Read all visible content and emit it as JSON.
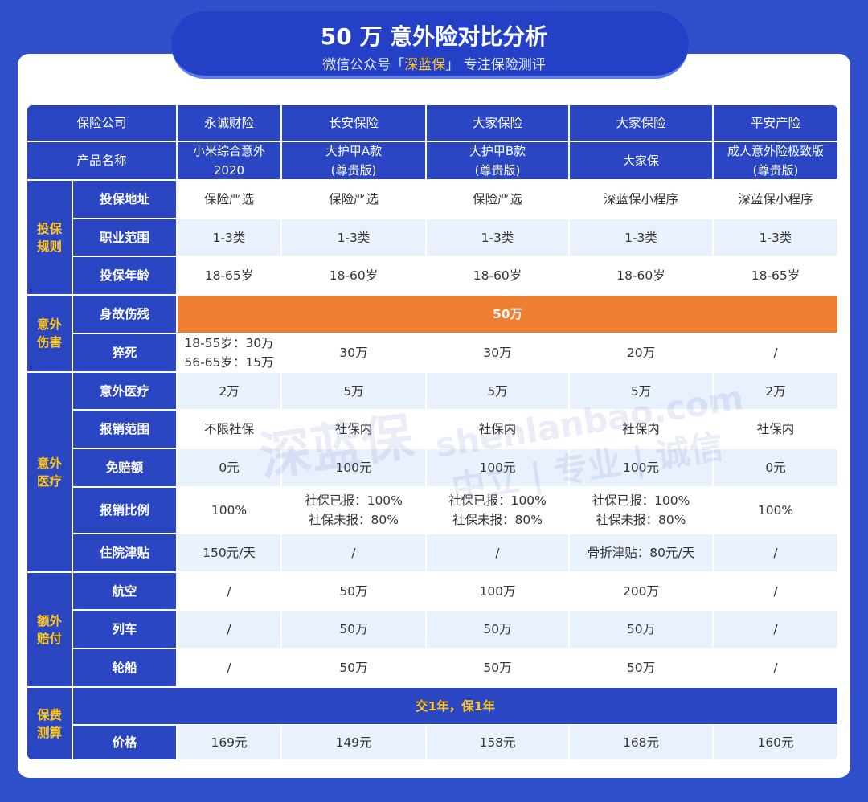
{
  "header": {
    "title": "50 万 意外险对比分析",
    "subtitle": [
      "微信公众号「",
      "深蓝保",
      "」 专注保险测评"
    ]
  },
  "watermark": {
    "logo": "深蓝保",
    "site": "shenlanbao.com",
    "slogan": "中立 | 专业 | 诚信"
  },
  "table": {
    "companies": {
      "label": "保险公司",
      "values": [
        "永诚财险",
        "长安保险",
        "大家保险",
        "大家保险",
        "平安产险"
      ]
    },
    "products": {
      "label": "产品名称",
      "values": [
        "小米综合意外\n2020",
        "大护甲A款\n(尊贵版)",
        "大护甲B款\n(尊贵版)",
        "大家保",
        "成人意外险极致版\n(尊贵版)"
      ]
    },
    "groups": [
      {
        "name": "投保\n规则",
        "rows": [
          {
            "label": "投保地址",
            "cells": [
              "保险严选",
              "保险严选",
              "保险严选",
              "深蓝保小程序",
              "深蓝保小程序"
            ]
          },
          {
            "label": "职业范围",
            "cells": [
              "1-3类",
              "1-3类",
              "1-3类",
              "1-3类",
              "1-3类"
            ]
          },
          {
            "label": "投保年龄",
            "cells": [
              "18-65岁",
              "18-60岁",
              "18-60岁",
              "18-60岁",
              "18-65岁"
            ]
          }
        ]
      },
      {
        "name": "意外\n伤害",
        "rows": [
          {
            "label": "身故伤残",
            "cells": [
              "50万"
            ],
            "color": "#ee7f32",
            "text_color": "#ffffff"
          },
          {
            "label": "猝死",
            "cells": [
              "18-55岁：30万\n56-65岁：15万",
              "30万",
              "30万",
              "20万",
              "/"
            ]
          }
        ]
      },
      {
        "name": "意外\n医疗",
        "rows": [
          {
            "label": "意外医疗",
            "cells": [
              "2万",
              "5万",
              "5万",
              "5万",
              "2万"
            ]
          },
          {
            "label": "报销范围",
            "cells": [
              "不限社保",
              "社保内",
              "社保内",
              "社保内",
              "社保内"
            ]
          },
          {
            "label": "免赔额",
            "cells": [
              "0元",
              "100元",
              "100元",
              "100元",
              "0元"
            ]
          },
          {
            "label": "报销比例",
            "cells": [
              "100%",
              "社保已报：100%\n社保未报：80%",
              "社保已报：100%\n社保未报：80%",
              "社保已报：100%\n社保未报：80%",
              "100%"
            ]
          },
          {
            "label": "住院津贴",
            "cells": [
              "150元/天",
              "/",
              "/",
              "骨折津贴：80元/天",
              "/"
            ]
          }
        ]
      },
      {
        "name": "额外\n赔付",
        "rows": [
          {
            "label": "航空",
            "cells": [
              "/",
              "50万",
              "100万",
              "200万",
              "/"
            ]
          },
          {
            "label": "列车",
            "cells": [
              "/",
              "50万",
              "50万",
              "50万",
              "/"
            ]
          },
          {
            "label": "轮船",
            "cells": [
              "/",
              "50万",
              "50万",
              "50万",
              "/"
            ]
          }
        ]
      },
      {
        "name": "保费\n测算",
        "rows": [
          {
            "cells": [
              "交1年，保1年"
            ],
            "color": "#2b46c2",
            "text_color": "#ffc71a"
          },
          {
            "label": "价格",
            "cells": [
              "169元",
              "149元",
              "158元",
              "168元",
              "160元"
            ]
          }
        ]
      }
    ]
  }
}
